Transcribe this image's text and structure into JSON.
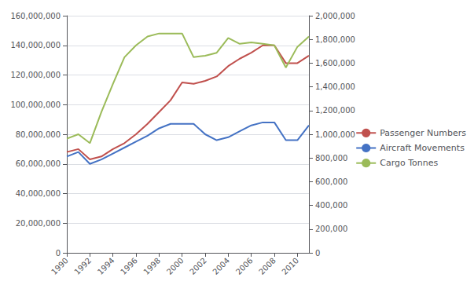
{
  "chart_data": {
    "type": "line",
    "x": [
      1990,
      1991,
      1992,
      1993,
      1994,
      1995,
      1996,
      1997,
      1998,
      1999,
      2000,
      2001,
      2002,
      2003,
      2004,
      2005,
      2006,
      2007,
      2008,
      2009,
      2010,
      2011
    ],
    "series": [
      {
        "name": "Passenger Numbers",
        "color": "#C0504D",
        "values": [
          68000000,
          70000000,
          63000000,
          65000000,
          70000000,
          74000000,
          80000000,
          87000000,
          95000000,
          103000000,
          115000000,
          114000000,
          116000000,
          119000000,
          126000000,
          131000000,
          135000000,
          140000000,
          140000000,
          128000000,
          128000000,
          133000000
        ]
      },
      {
        "name": "Aircraft Movements",
        "color": "#4472C4",
        "values": [
          65000000,
          68000000,
          60000000,
          63000000,
          67000000,
          71000000,
          75000000,
          79000000,
          84000000,
          87000000,
          87000000,
          87000000,
          80000000,
          76000000,
          78000000,
          82000000,
          86000000,
          88000000,
          88000000,
          76000000,
          76000000,
          86000000
        ]
      },
      {
        "name": "Cargo Tonnes",
        "color": "#9BBB59",
        "values": [
          77000000,
          80000000,
          74000000,
          95000000,
          114000000,
          132000000,
          140000000,
          146000000,
          148000000,
          148000000,
          148000000,
          132000000,
          133000000,
          135000000,
          145000000,
          141000000,
          142000000,
          141000000,
          140000000,
          125000000,
          139000000,
          146000000
        ]
      }
    ],
    "xlim": [
      1990,
      2011
    ],
    "xticks": [
      1990,
      1992,
      1994,
      1996,
      1998,
      2000,
      2002,
      2004,
      2006,
      2008,
      2010
    ],
    "ylim": [
      0,
      160000000
    ],
    "yticks": [
      0,
      {
        "value": 20000000,
        "label": "20,000,000"
      },
      {
        "value": 40000000,
        "label": "40,000,000"
      },
      {
        "value": 60000000,
        "label": "60,000,000"
      },
      {
        "value": 80000000,
        "label": "80,000,000"
      },
      {
        "value": 100000000,
        "label": "100,000,000"
      },
      {
        "value": 120000000,
        "label": "120,000,000"
      },
      {
        "value": 140000000,
        "label": "140,000,000"
      },
      {
        "value": 160000000,
        "label": "160,000,000"
      }
    ],
    "y2lim": [
      0,
      2000000
    ],
    "y2ticks": [
      0,
      {
        "value": 200000,
        "label": "200,000"
      },
      {
        "value": 400000,
        "label": "400,000"
      },
      {
        "value": 600000,
        "label": "600,000"
      },
      {
        "value": 800000,
        "label": "800,000"
      },
      {
        "value": 1000000,
        "label": "1,000,000"
      },
      {
        "value": 1200000,
        "label": "1,200,000"
      },
      {
        "value": 1400000,
        "label": "1,400,000"
      },
      {
        "value": 1600000,
        "label": "1,600,000"
      },
      {
        "value": 1800000,
        "label": "1,800,000"
      },
      {
        "value": 2000000,
        "label": "2,000,000"
      }
    ],
    "grid": true,
    "legend": "right"
  }
}
